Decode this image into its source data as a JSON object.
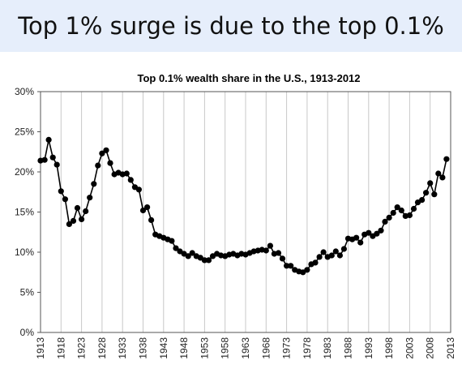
{
  "slide": {
    "title": "Top 1% surge is due to the top 0.1%"
  },
  "chart_data": {
    "type": "line",
    "title": "Top 0.1% wealth share in the U.S., 1913-2012",
    "xlabel": "",
    "ylabel": "",
    "ylim": [
      0,
      30
    ],
    "xlim": [
      1913,
      2013
    ],
    "y_ticks": [
      "0%",
      "5%",
      "10%",
      "15%",
      "20%",
      "25%",
      "30%"
    ],
    "x_ticks": [
      "1913",
      "1918",
      "1923",
      "1928",
      "1933",
      "1938",
      "1943",
      "1948",
      "1953",
      "1958",
      "1963",
      "1968",
      "1973",
      "1978",
      "1983",
      "1988",
      "1993",
      "1998",
      "2003",
      "2008",
      "2013"
    ],
    "grid": "vertical",
    "marker": "circle",
    "line_color": "#000000",
    "series": [
      {
        "x": [
          1913,
          1914,
          1915,
          1916,
          1917,
          1918,
          1919,
          1920,
          1921,
          1922,
          1923,
          1924,
          1925,
          1926,
          1927,
          1928,
          1929,
          1930,
          1931,
          1932,
          1933,
          1934,
          1935,
          1936,
          1937,
          1938,
          1939,
          1940,
          1941,
          1942,
          1943,
          1944,
          1945,
          1946,
          1947,
          1948,
          1949,
          1950,
          1951,
          1952,
          1953,
          1954,
          1955,
          1956,
          1957,
          1958,
          1959,
          1960,
          1961,
          1962,
          1963,
          1964,
          1965,
          1966,
          1967,
          1968,
          1969,
          1970,
          1971,
          1972,
          1973,
          1974,
          1975,
          1976,
          1977,
          1978,
          1979,
          1980,
          1981,
          1982,
          1983,
          1984,
          1985,
          1986,
          1987,
          1988,
          1989,
          1990,
          1991,
          1992,
          1993,
          1994,
          1995,
          1996,
          1997,
          1998,
          1999,
          2000,
          2001,
          2002,
          2003,
          2004,
          2005,
          2006,
          2007,
          2008,
          2009,
          2010,
          2011,
          2012
        ],
        "values": [
          21.4,
          21.5,
          24.0,
          21.8,
          20.9,
          17.6,
          16.6,
          13.5,
          13.9,
          15.5,
          14.1,
          15.1,
          16.8,
          18.5,
          20.8,
          22.3,
          22.7,
          21.1,
          19.7,
          19.9,
          19.7,
          19.8,
          19.0,
          18.1,
          17.8,
          15.2,
          15.6,
          14.0,
          12.2,
          12.0,
          11.8,
          11.6,
          11.4,
          10.5,
          10.1,
          9.8,
          9.5,
          9.9,
          9.5,
          9.3,
          9.0,
          9.0,
          9.5,
          9.8,
          9.6,
          9.5,
          9.7,
          9.8,
          9.6,
          9.8,
          9.7,
          9.9,
          10.1,
          10.2,
          10.3,
          10.2,
          10.8,
          9.8,
          9.9,
          9.2,
          8.3,
          8.3,
          7.8,
          7.6,
          7.5,
          7.8,
          8.5,
          8.7,
          9.4,
          10.0,
          9.4,
          9.6,
          10.1,
          9.6,
          10.4,
          11.7,
          11.6,
          11.8,
          11.2,
          12.2,
          12.4,
          12.0,
          12.3,
          12.7,
          13.8,
          14.3,
          14.9,
          15.6,
          15.2,
          14.5,
          14.6,
          15.4,
          16.2,
          16.5,
          17.4,
          18.6,
          17.2,
          19.8,
          19.3,
          21.6
        ]
      }
    ]
  }
}
